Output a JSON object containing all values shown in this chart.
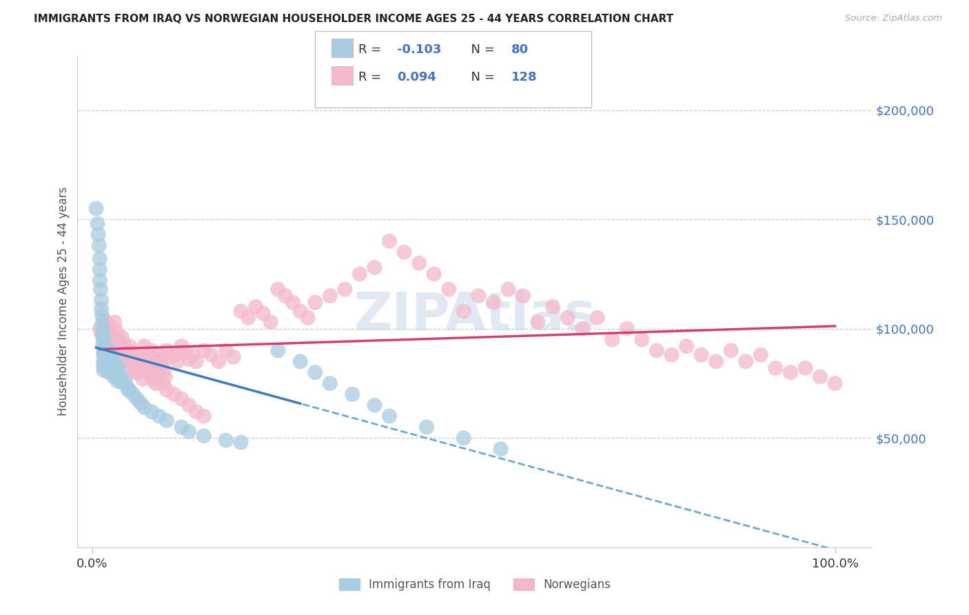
{
  "title": "IMMIGRANTS FROM IRAQ VS NORWEGIAN HOUSEHOLDER INCOME AGES 25 - 44 YEARS CORRELATION CHART",
  "source": "Source: ZipAtlas.com",
  "ylabel": "Householder Income Ages 25 - 44 years",
  "y_tick_labels": [
    "$50,000",
    "$100,000",
    "$150,000",
    "$200,000"
  ],
  "y_tick_values": [
    50000,
    100000,
    150000,
    200000
  ],
  "ylim": [
    0,
    225000
  ],
  "xlim": [
    -0.02,
    1.05
  ],
  "legend1_label": "Immigrants from Iraq",
  "legend2_label": "Norwegians",
  "R1_text": "-0.103",
  "N1": "80",
  "R2_text": "0.094",
  "N2": "128",
  "color_iraq": "#a8cce0",
  "color_norway": "#f4b8cc",
  "color_iraq_line_solid": "#3a7abf",
  "color_iraq_line_dash": "#6aaad4",
  "color_norway_line": "#d04070",
  "watermark": "ZIPAtlas",
  "title_color": "#222222",
  "source_color": "#aaaaaa",
  "ytick_color": "#4472c4",
  "legend_text_color": "#4472c4",
  "grid_color": "#cccccc",
  "iraq_x": [
    0.005,
    0.007,
    0.008,
    0.009,
    0.01,
    0.01,
    0.01,
    0.011,
    0.012,
    0.012,
    0.013,
    0.013,
    0.014,
    0.014,
    0.014,
    0.015,
    0.015,
    0.015,
    0.015,
    0.015,
    0.016,
    0.016,
    0.016,
    0.017,
    0.017,
    0.018,
    0.018,
    0.019,
    0.019,
    0.02,
    0.02,
    0.021,
    0.021,
    0.022,
    0.022,
    0.023,
    0.024,
    0.024,
    0.025,
    0.025,
    0.026,
    0.027,
    0.028,
    0.029,
    0.03,
    0.03,
    0.031,
    0.032,
    0.033,
    0.034,
    0.035,
    0.036,
    0.038,
    0.04,
    0.042,
    0.045,
    0.048,
    0.05,
    0.055,
    0.06,
    0.065,
    0.07,
    0.08,
    0.09,
    0.1,
    0.12,
    0.13,
    0.15,
    0.18,
    0.2,
    0.25,
    0.28,
    0.3,
    0.32,
    0.35,
    0.38,
    0.4,
    0.45,
    0.5,
    0.55
  ],
  "iraq_y": [
    155000,
    148000,
    143000,
    138000,
    132000,
    127000,
    122000,
    118000,
    113000,
    109000,
    106000,
    102000,
    99000,
    96000,
    93000,
    90000,
    88000,
    85000,
    83000,
    81000,
    95000,
    92000,
    89000,
    87000,
    84000,
    91000,
    88000,
    85000,
    82000,
    88000,
    85000,
    90000,
    87000,
    84000,
    80000,
    87000,
    84000,
    81000,
    88000,
    84000,
    80000,
    84000,
    81000,
    78000,
    85000,
    82000,
    79000,
    82000,
    79000,
    76000,
    82000,
    79000,
    76000,
    78000,
    75000,
    75000,
    72000,
    72000,
    70000,
    68000,
    66000,
    64000,
    62000,
    60000,
    58000,
    55000,
    53000,
    51000,
    49000,
    48000,
    90000,
    85000,
    80000,
    75000,
    70000,
    65000,
    60000,
    55000,
    50000,
    45000
  ],
  "norway_x": [
    0.01,
    0.012,
    0.014,
    0.016,
    0.018,
    0.02,
    0.022,
    0.024,
    0.026,
    0.028,
    0.03,
    0.032,
    0.034,
    0.036,
    0.038,
    0.04,
    0.042,
    0.044,
    0.046,
    0.048,
    0.05,
    0.052,
    0.054,
    0.056,
    0.058,
    0.06,
    0.062,
    0.064,
    0.066,
    0.068,
    0.07,
    0.072,
    0.074,
    0.076,
    0.078,
    0.08,
    0.082,
    0.084,
    0.086,
    0.088,
    0.09,
    0.092,
    0.094,
    0.096,
    0.098,
    0.1,
    0.105,
    0.11,
    0.115,
    0.12,
    0.125,
    0.13,
    0.135,
    0.14,
    0.15,
    0.16,
    0.17,
    0.18,
    0.19,
    0.2,
    0.21,
    0.22,
    0.23,
    0.24,
    0.25,
    0.26,
    0.27,
    0.28,
    0.29,
    0.3,
    0.32,
    0.34,
    0.36,
    0.38,
    0.4,
    0.42,
    0.44,
    0.46,
    0.48,
    0.5,
    0.52,
    0.54,
    0.56,
    0.58,
    0.6,
    0.62,
    0.64,
    0.66,
    0.68,
    0.7,
    0.72,
    0.74,
    0.76,
    0.78,
    0.8,
    0.82,
    0.84,
    0.86,
    0.88,
    0.9,
    0.92,
    0.94,
    0.96,
    0.98,
    1.0,
    0.015,
    0.02,
    0.025,
    0.03,
    0.035,
    0.04,
    0.045,
    0.05,
    0.055,
    0.06,
    0.065,
    0.07,
    0.075,
    0.08,
    0.085,
    0.09,
    0.095,
    0.1,
    0.11,
    0.12,
    0.13,
    0.14,
    0.15
  ],
  "norway_y": [
    100000,
    98000,
    96000,
    104000,
    100000,
    98000,
    102000,
    98000,
    95000,
    92000,
    103000,
    99000,
    96000,
    93000,
    90000,
    96000,
    93000,
    90000,
    88000,
    85000,
    92000,
    89000,
    86000,
    83000,
    80000,
    88000,
    85000,
    82000,
    80000,
    77000,
    92000,
    89000,
    86000,
    84000,
    81000,
    90000,
    87000,
    85000,
    82000,
    80000,
    88000,
    86000,
    83000,
    81000,
    78000,
    90000,
    87000,
    88000,
    85000,
    92000,
    89000,
    86000,
    88000,
    85000,
    90000,
    88000,
    85000,
    90000,
    87000,
    108000,
    105000,
    110000,
    107000,
    103000,
    118000,
    115000,
    112000,
    108000,
    105000,
    112000,
    115000,
    118000,
    125000,
    128000,
    140000,
    135000,
    130000,
    125000,
    118000,
    108000,
    115000,
    112000,
    118000,
    115000,
    103000,
    110000,
    105000,
    100000,
    105000,
    95000,
    100000,
    95000,
    90000,
    88000,
    92000,
    88000,
    85000,
    90000,
    85000,
    88000,
    82000,
    80000,
    82000,
    78000,
    75000,
    100000,
    98000,
    95000,
    92000,
    90000,
    88000,
    85000,
    85000,
    82000,
    80000,
    85000,
    82000,
    80000,
    77000,
    75000,
    78000,
    75000,
    72000,
    70000,
    68000,
    65000,
    62000,
    60000
  ]
}
